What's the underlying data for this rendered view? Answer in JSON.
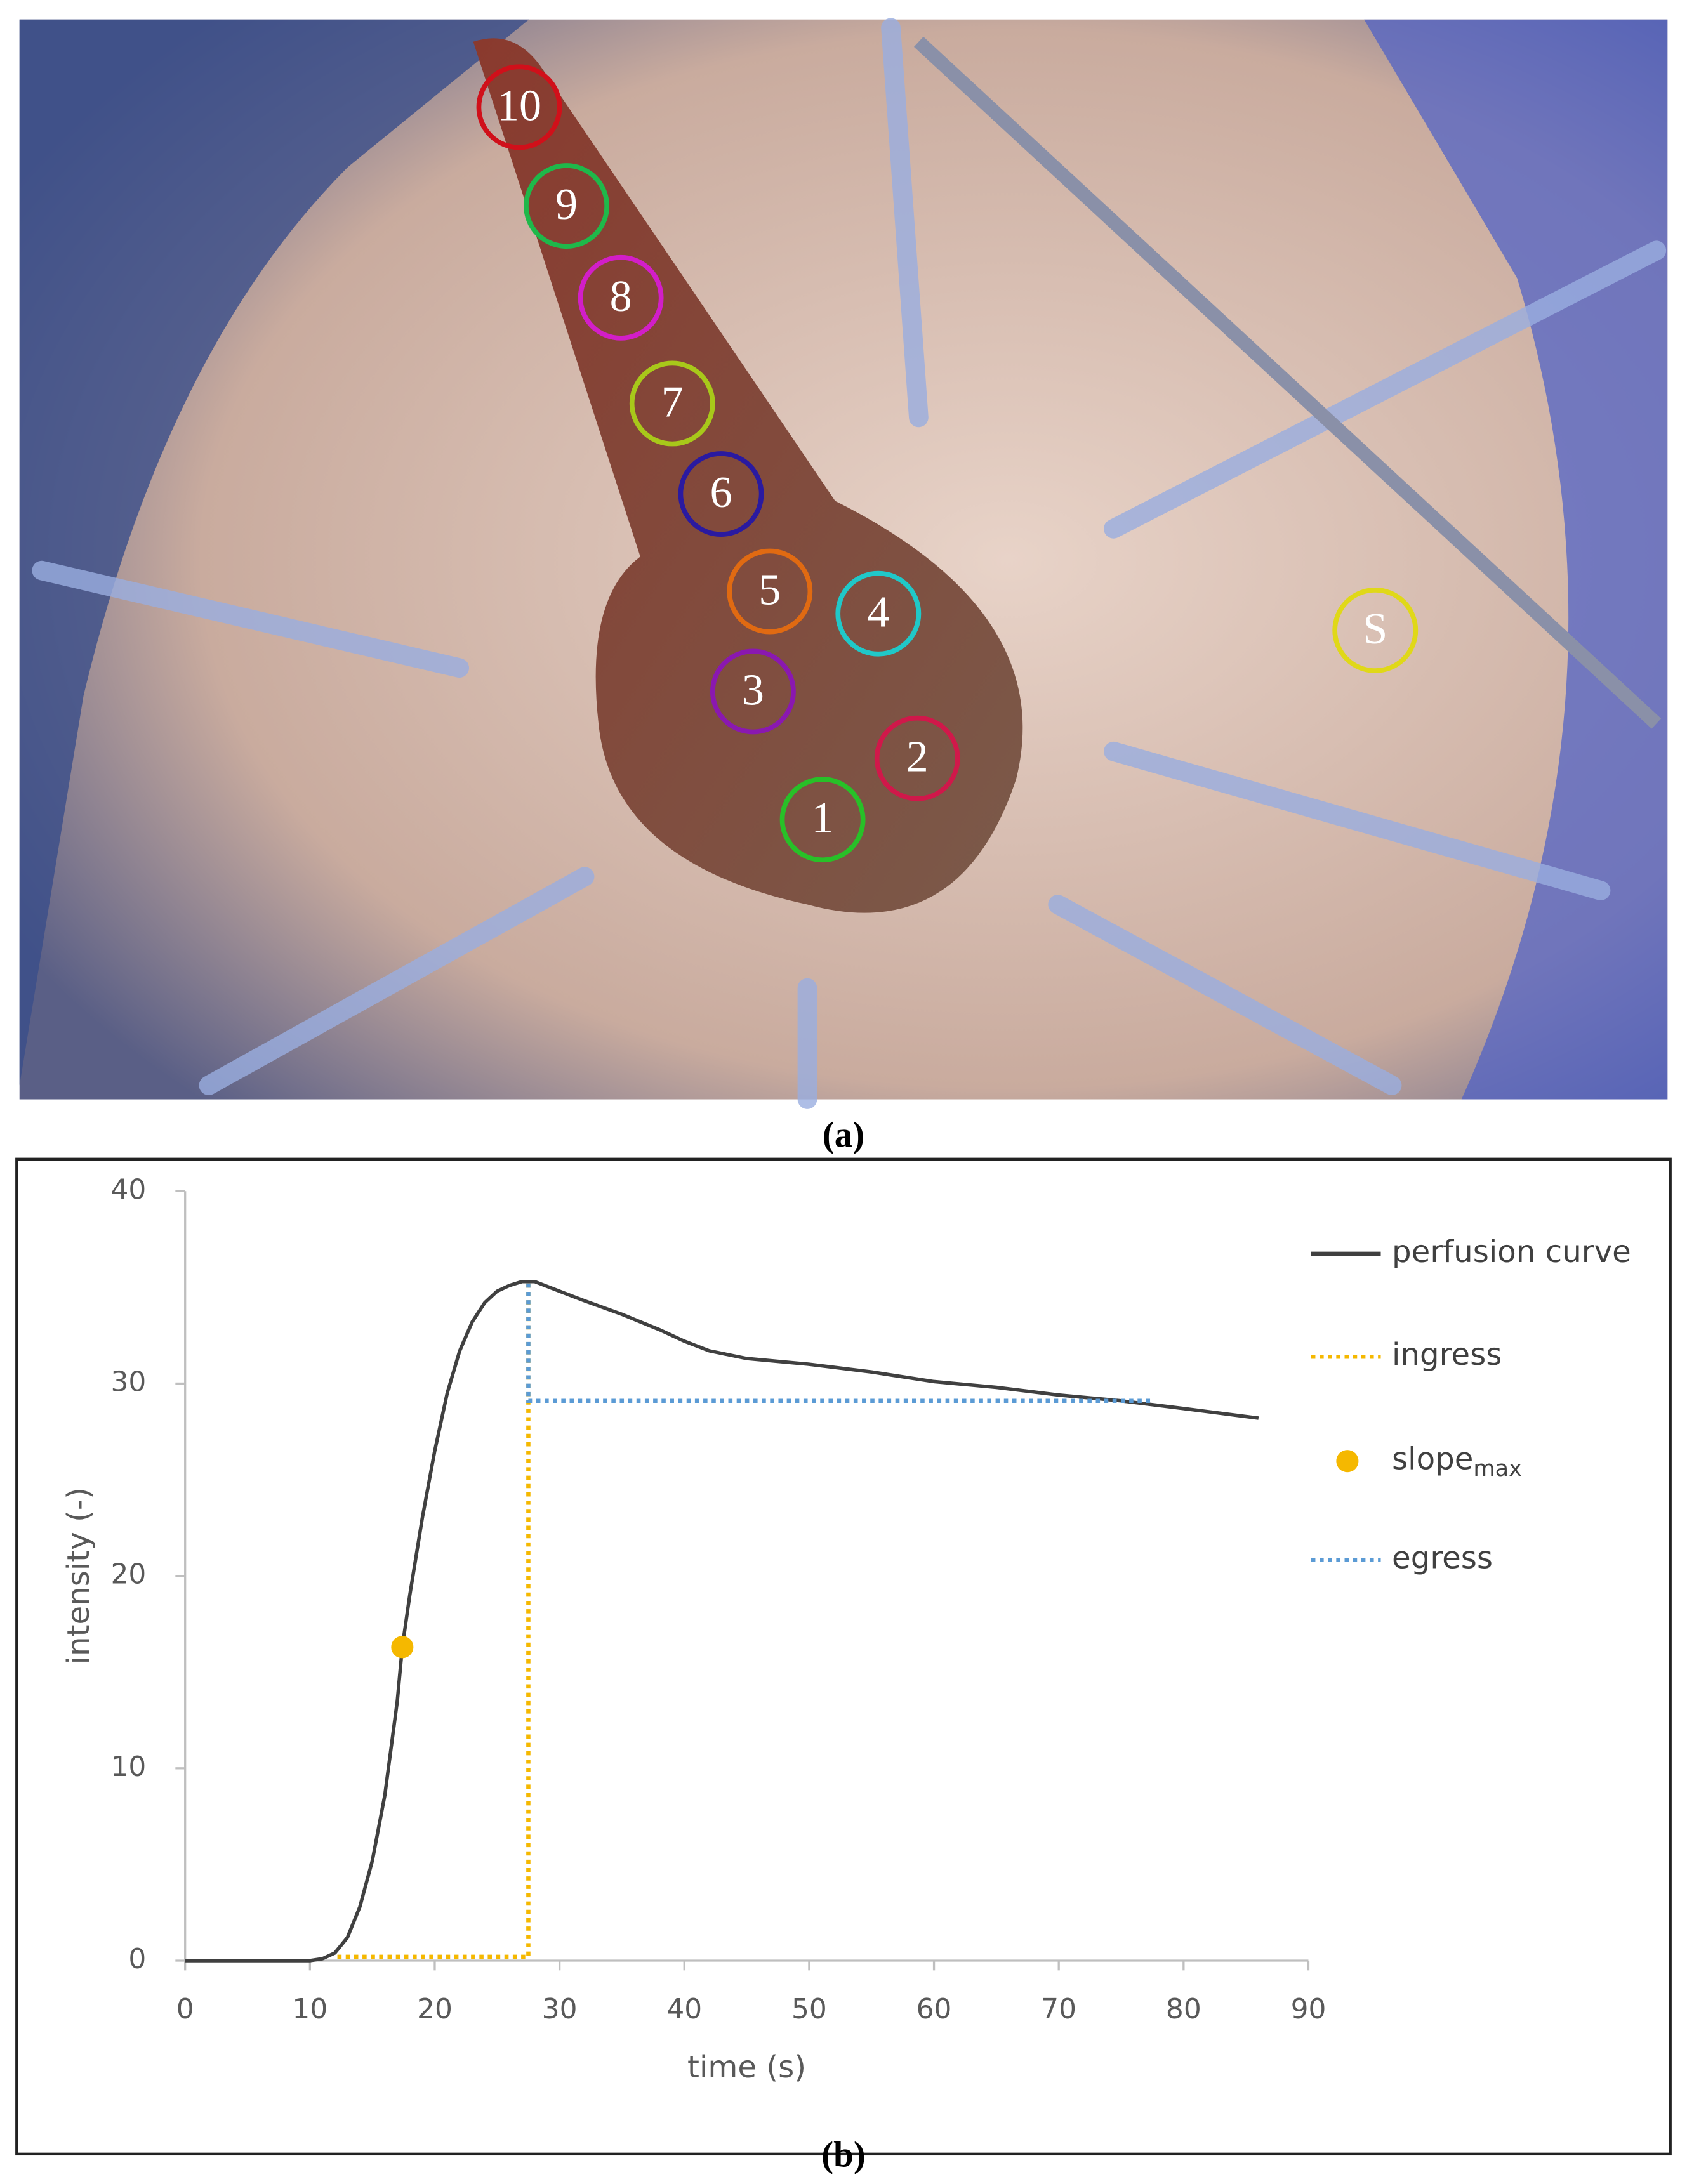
{
  "photo": {
    "markers": [
      {
        "label": "10",
        "color": "#d0101a",
        "x": null
      },
      {
        "label": "9",
        "color": "#1fb84a"
      },
      {
        "label": "8",
        "color": "#d21ec8"
      },
      {
        "label": "7",
        "color": "#a8c81a"
      },
      {
        "label": "6",
        "color": "#2a1aa0"
      },
      {
        "label": "5",
        "color": "#e06a12"
      },
      {
        "label": "4",
        "color": "#20c8c8"
      },
      {
        "label": "3",
        "color": "#8a18b0"
      },
      {
        "label": "2",
        "color": "#d0184a"
      },
      {
        "label": "1",
        "color": "#28c028"
      },
      {
        "label": "S",
        "color": "#e0d818"
      }
    ]
  },
  "caption_a": "(a)",
  "chart_data": {
    "type": "line",
    "xlabel": "time (s)",
    "ylabel": "intensity (-)",
    "xlim": [
      0,
      90
    ],
    "xticks": [
      0,
      10,
      20,
      30,
      40,
      50,
      60,
      70,
      80,
      90
    ],
    "ylim": [
      0,
      40
    ],
    "yticks": [
      0,
      10,
      20,
      30,
      40
    ],
    "grid": false,
    "legend": "right",
    "series": [
      {
        "name": "perfusion curve",
        "color": "#404040",
        "style": "solid",
        "x": [
          0,
          5,
          10,
          11,
          12,
          13,
          14,
          15,
          16,
          17,
          17.4,
          18,
          19,
          20,
          21,
          22,
          23,
          24,
          25,
          26,
          27,
          28,
          30,
          32,
          35,
          38,
          40,
          42,
          45,
          50,
          55,
          60,
          65,
          70,
          75,
          80,
          86
        ],
        "values": [
          0,
          0,
          0,
          0.1,
          0.4,
          1.2,
          2.8,
          5.2,
          8.6,
          13.5,
          16.3,
          19,
          23,
          26.5,
          29.5,
          31.7,
          33.2,
          34.2,
          34.8,
          35.1,
          35.3,
          35.3,
          34.8,
          34.3,
          33.6,
          32.8,
          32.2,
          31.7,
          31.3,
          31,
          30.6,
          30.1,
          29.8,
          29.4,
          29.1,
          28.7,
          28.2
        ]
      },
      {
        "name": "ingress",
        "color": "#f5b800",
        "style": "dotted",
        "x": [
          12.2,
          27.5,
          27.5
        ],
        "values": [
          0.2,
          0.2,
          35.2
        ]
      },
      {
        "name": "slope",
        "name_sub": "max",
        "color": "#f5b800",
        "style": "marker",
        "x": [
          17.4
        ],
        "values": [
          16.3
        ]
      },
      {
        "name": "egress",
        "color": "#5b9bd5",
        "style": "dotted",
        "x": [
          27.5,
          27.5,
          77.5
        ],
        "values": [
          35.2,
          29.1,
          29.1
        ]
      }
    ]
  },
  "caption_b": "(b)"
}
